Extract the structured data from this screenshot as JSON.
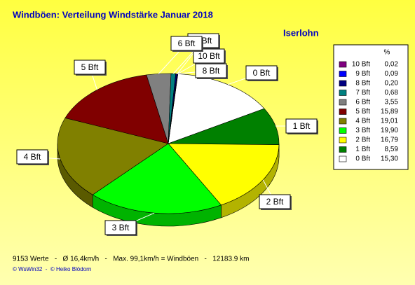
{
  "chart_data": {
    "type": "pie",
    "title": "Windböen: Verteilung Windstärke  Januar 2018",
    "subtitle": "Iserlohn",
    "legend_header": "%",
    "categories": [
      "0 Bft",
      "1 Bft",
      "2 Bft",
      "3 Bft",
      "4 Bft",
      "5 Bft",
      "6 Bft",
      "7 Bft",
      "8 Bft",
      "9 Bft",
      "10 Bft"
    ],
    "values": [
      15.3,
      8.59,
      16.79,
      19.9,
      19.01,
      15.89,
      3.55,
      0.68,
      0.2,
      0.09,
      0.02
    ],
    "value_labels": [
      "15,30",
      "8,59",
      "16,79",
      "19,90",
      "19,01",
      "15,89",
      "3,55",
      "0,68",
      "0,20",
      "0,09",
      "0,02"
    ],
    "colors": [
      "#ffffff",
      "#008000",
      "#ffff00",
      "#00ff00",
      "#808000",
      "#800000",
      "#808080",
      "#008080",
      "#000080",
      "#0000ff",
      "#800080"
    ],
    "footer": "9153 Werte   -   Ø 16,4km/h   -   Max. 99,1km/h = Windböen   -   12183.9 km",
    "credits": "© WsWin32  -  © Heiko Blödorn"
  }
}
